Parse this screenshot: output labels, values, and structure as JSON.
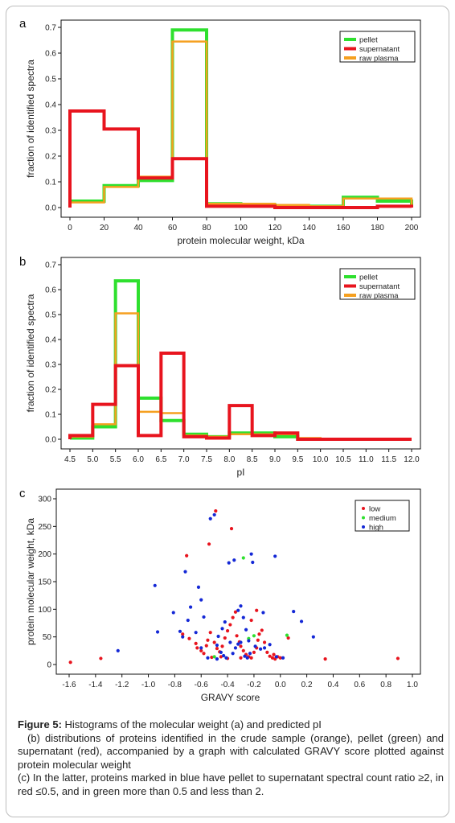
{
  "chart_data": [
    {
      "type": "histogram",
      "panel_label": "a",
      "xlabel": "protein molecular weight, kDa",
      "ylabel": "fraction of identified spectra",
      "xlim": [
        0,
        200
      ],
      "ylim": [
        0,
        0.7
      ],
      "x_ticks": [
        "0",
        "20",
        "40",
        "60",
        "80",
        "100",
        "120",
        "140",
        "160",
        "180",
        "200"
      ],
      "y_ticks": [
        "0.0",
        "0.1",
        "0.2",
        "0.3",
        "0.4",
        "0.5",
        "0.6",
        "0.7"
      ],
      "legend_position": "top-right",
      "bin_edges": [
        0,
        20,
        40,
        60,
        80,
        100,
        120,
        140,
        160,
        180,
        200
      ],
      "series": [
        {
          "name": "pellet",
          "color": "#2ee02e",
          "values": [
            0.025,
            0.085,
            0.105,
            0.69,
            0.015,
            0.01,
            0.005,
            0.005,
            0.04,
            0.025
          ]
        },
        {
          "name": "supernatant",
          "color": "#e8141e",
          "values": [
            0.375,
            0.305,
            0.115,
            0.19,
            0.005,
            0.005,
            0.0,
            0.0,
            0.0,
            0.005
          ]
        },
        {
          "name": "raw plasma",
          "color": "#f5a020",
          "values": [
            0.02,
            0.08,
            0.12,
            0.645,
            0.015,
            0.015,
            0.01,
            0.005,
            0.035,
            0.035
          ]
        }
      ]
    },
    {
      "type": "histogram",
      "panel_label": "b",
      "xlabel": "pI",
      "ylabel": "fraction of identified spectra",
      "xlim": [
        4.5,
        12.0
      ],
      "ylim": [
        0,
        0.7
      ],
      "x_ticks": [
        "4.5",
        "5.0",
        "5.5",
        "6.0",
        "6.5",
        "7.0",
        "7.5",
        "8.0",
        "8.5",
        "9.0",
        "9.5",
        "10.0",
        "10.5",
        "11.0",
        "11.5",
        "12.0"
      ],
      "y_ticks": [
        "0.0",
        "0.1",
        "0.2",
        "0.3",
        "0.4",
        "0.5",
        "0.6",
        "0.7"
      ],
      "legend_position": "top-right",
      "bin_edges": [
        4.5,
        5.0,
        5.5,
        6.0,
        6.5,
        7.0,
        7.5,
        8.0,
        8.5,
        9.0,
        9.5,
        10.0,
        10.5,
        11.0,
        11.5,
        12.0
      ],
      "series": [
        {
          "name": "pellet",
          "color": "#2ee02e",
          "values": [
            0.005,
            0.05,
            0.635,
            0.165,
            0.075,
            0.02,
            0.01,
            0.025,
            0.025,
            0.01,
            0.0,
            0.0,
            0.0,
            0.0,
            0.0
          ]
        },
        {
          "name": "supernatant",
          "color": "#e8141e",
          "values": [
            0.015,
            0.14,
            0.295,
            0.015,
            0.345,
            0.01,
            0.005,
            0.135,
            0.015,
            0.025,
            0.0,
            0.0,
            0.0,
            0.0,
            0.0
          ]
        },
        {
          "name": "raw plasma",
          "color": "#f5a020",
          "values": [
            0.01,
            0.06,
            0.505,
            0.11,
            0.105,
            0.015,
            0.01,
            0.02,
            0.02,
            0.02,
            0.005,
            0.0,
            0.0,
            0.0,
            0.0
          ]
        }
      ]
    },
    {
      "type": "scatter",
      "panel_label": "c",
      "xlabel": "GRAVY score",
      "ylabel": "protein molecular weight, kDa",
      "xlim": [
        -1.6,
        1.0
      ],
      "ylim": [
        0,
        300
      ],
      "x_ticks": [
        "-1.6",
        "-1.4",
        "-1.2",
        "-1.0",
        "-0.8",
        "-0.6",
        "-0.4",
        "-0.2",
        "0.0",
        "0.2",
        "0.4",
        "0.6",
        "0.8",
        "1.0"
      ],
      "y_ticks": [
        "0",
        "50",
        "100",
        "150",
        "200",
        "250",
        "300"
      ],
      "legend_position": "top-right",
      "series": [
        {
          "name": "low",
          "color": "#e8141e",
          "points": [
            [
              -1.59,
              4
            ],
            [
              -1.36,
              11
            ],
            [
              -0.71,
              197
            ],
            [
              -0.54,
              218
            ],
            [
              -0.49,
              278
            ],
            [
              -0.37,
              246
            ],
            [
              0.34,
              10
            ],
            [
              0.89,
              11
            ],
            [
              0.06,
              48
            ],
            [
              -0.74,
              55
            ],
            [
              -0.69,
              47
            ],
            [
              -0.64,
              38
            ],
            [
              -0.63,
              30
            ],
            [
              -0.6,
              25
            ],
            [
              -0.58,
              20
            ],
            [
              -0.56,
              34
            ],
            [
              -0.55,
              44
            ],
            [
              -0.53,
              58
            ],
            [
              -0.5,
              40
            ],
            [
              -0.48,
              29
            ],
            [
              -0.46,
              23
            ],
            [
              -0.44,
              33
            ],
            [
              -0.42,
              48
            ],
            [
              -0.4,
              61
            ],
            [
              -0.38,
              72
            ],
            [
              -0.36,
              85
            ],
            [
              -0.34,
              95
            ],
            [
              -0.33,
              52
            ],
            [
              -0.31,
              41
            ],
            [
              -0.3,
              33
            ],
            [
              -0.28,
              25
            ],
            [
              -0.26,
              18
            ],
            [
              -0.24,
              14
            ],
            [
              -0.22,
              12
            ],
            [
              -0.2,
              22
            ],
            [
              -0.18,
              30
            ],
            [
              -0.17,
              44
            ],
            [
              -0.16,
              55
            ],
            [
              -0.14,
              62
            ],
            [
              -0.12,
              40
            ],
            [
              -0.1,
              22
            ],
            [
              -0.08,
              15
            ],
            [
              -0.06,
              12
            ],
            [
              -0.05,
              18
            ],
            [
              -0.04,
              10
            ],
            [
              -0.02,
              14
            ],
            [
              0.0,
              12
            ],
            [
              -0.18,
              98
            ],
            [
              -0.22,
              80
            ],
            [
              -0.45,
              14
            ],
            [
              -0.52,
              13
            ],
            [
              -0.4,
              11
            ],
            [
              -0.3,
              12
            ]
          ]
        },
        {
          "name": "medium",
          "color": "#2ee02e",
          "points": [
            [
              -0.28,
              193
            ],
            [
              0.05,
              53
            ],
            [
              -0.2,
              52
            ],
            [
              -0.5,
              14
            ],
            [
              -0.24,
              47
            ]
          ]
        },
        {
          "name": "high",
          "color": "#1428d6",
          "points": [
            [
              -1.23,
              25
            ],
            [
              -0.95,
              143
            ],
            [
              -0.93,
              59
            ],
            [
              -0.81,
              94
            ],
            [
              -0.76,
              60
            ],
            [
              -0.74,
              50
            ],
            [
              -0.72,
              168
            ],
            [
              -0.7,
              80
            ],
            [
              -0.68,
              104
            ],
            [
              -0.62,
              140
            ],
            [
              -0.6,
              117
            ],
            [
              -0.58,
              86
            ],
            [
              -0.53,
              264
            ],
            [
              -0.5,
              271
            ],
            [
              -0.47,
              51
            ],
            [
              -0.44,
              65
            ],
            [
              -0.42,
              77
            ],
            [
              -0.39,
              184
            ],
            [
              -0.35,
              189
            ],
            [
              -0.32,
              98
            ],
            [
              -0.3,
              106
            ],
            [
              -0.28,
              85
            ],
            [
              -0.26,
              63
            ],
            [
              -0.24,
              43
            ],
            [
              -0.22,
              200
            ],
            [
              -0.21,
              185
            ],
            [
              -0.19,
              33
            ],
            [
              -0.04,
              196
            ],
            [
              0.1,
              96
            ],
            [
              0.16,
              78
            ],
            [
              0.25,
              50
            ],
            [
              -0.48,
              35
            ],
            [
              -0.45,
              22
            ],
            [
              -0.43,
              16
            ],
            [
              -0.41,
              12
            ],
            [
              -0.36,
              20
            ],
            [
              -0.34,
              30
            ],
            [
              -0.32,
              37
            ],
            [
              -0.3,
              40
            ],
            [
              -0.27,
              15
            ],
            [
              -0.25,
              12
            ],
            [
              -0.23,
              20
            ],
            [
              -0.15,
              28
            ],
            [
              -0.12,
              30
            ],
            [
              -0.08,
              36
            ],
            [
              -0.03,
              14
            ],
            [
              0.02,
              12
            ],
            [
              -0.48,
              10
            ],
            [
              -0.6,
              30
            ],
            [
              -0.55,
              12
            ],
            [
              -0.64,
              58
            ],
            [
              -0.38,
              40
            ],
            [
              -0.13,
              94
            ]
          ]
        }
      ]
    }
  ],
  "caption": {
    "title": "Figure 5:",
    "line1": " Histograms of the molecular weight (a) and predicted pI",
    "line2": "(b) distributions of proteins identified in the crude sample (orange), pellet (green) and supernatant (red), accompanied by a graph with calculated GRAVY score plotted against protein molecular weight",
    "line3": "(c) In the latter, proteins marked in blue have pellet to supernatant spectral count ratio ≥2, in red ≤0.5, and in green more than 0.5 and less than 2."
  }
}
